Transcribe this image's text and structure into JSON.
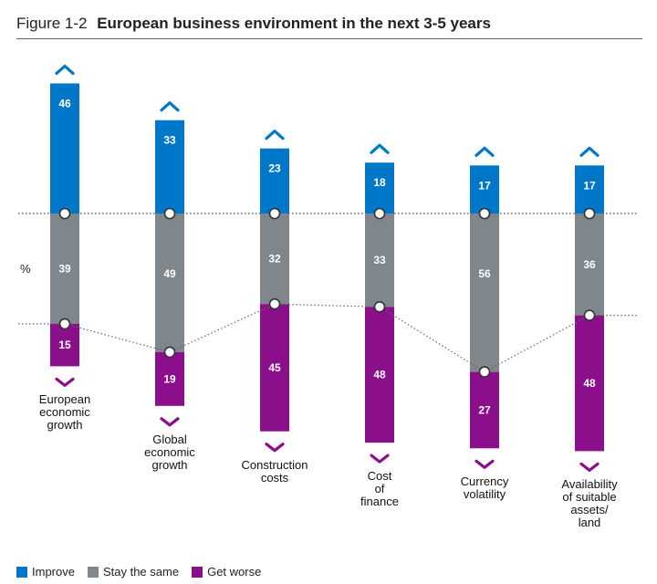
{
  "figure": {
    "number": "Figure 1-2",
    "title": "European business environment in the next 3-5 years"
  },
  "chart_data": {
    "type": "bar",
    "stacked": true,
    "ylabel": "%",
    "categories": [
      "European economic growth",
      "Global economic growth",
      "Construction costs",
      "Cost of finance",
      "Currency volatility",
      "Availability of suitable assets/ land"
    ],
    "series": [
      {
        "name": "Improve",
        "color": "#0077c8",
        "values": [
          46,
          33,
          23,
          18,
          17,
          17
        ]
      },
      {
        "name": "Stay the same",
        "color": "#7f868c",
        "values": [
          39,
          49,
          32,
          33,
          56,
          36
        ]
      },
      {
        "name": "Get worse",
        "color": "#8b0e8b",
        "values": [
          15,
          19,
          45,
          48,
          27,
          48
        ]
      }
    ],
    "up_indicator_color": "#0077c8",
    "down_indicator_color": "#8b0e8b",
    "legend_position": "bottom-left"
  }
}
